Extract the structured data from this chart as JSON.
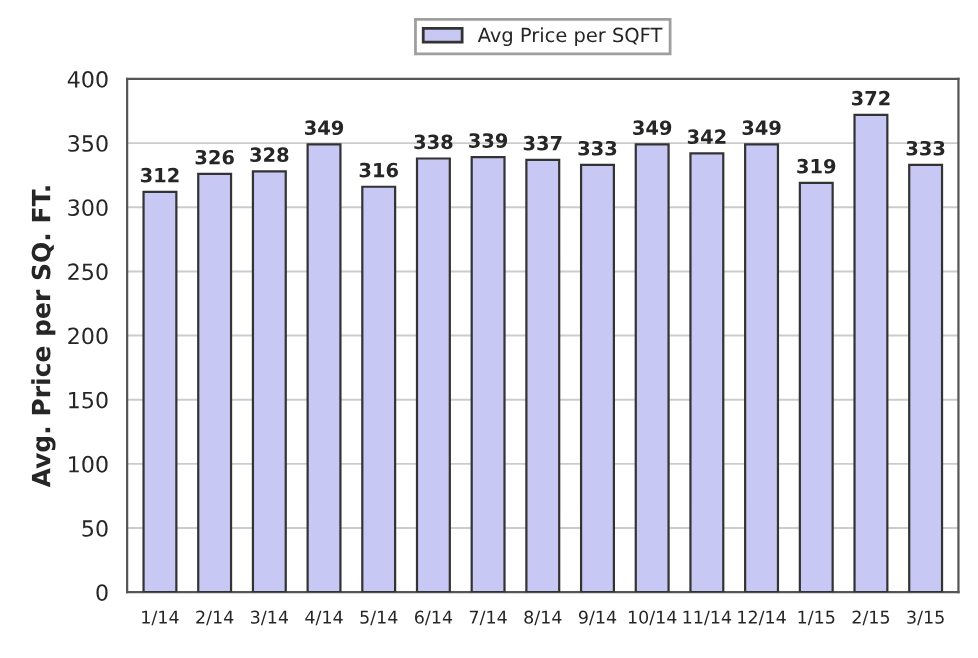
{
  "chart_data": {
    "type": "bar",
    "ylabel": "Avg. Price per SQ. FT.",
    "categories": [
      "1/14",
      "2/14",
      "3/14",
      "4/14",
      "5/14",
      "6/14",
      "7/14",
      "8/14",
      "9/14",
      "10/14",
      "11/14",
      "12/14",
      "1/15",
      "2/15",
      "3/15"
    ],
    "series": [
      {
        "name": "Avg Price per SQFT",
        "color": "#c8c8f5",
        "values": [
          312,
          326,
          328,
          349,
          316,
          338,
          339,
          337,
          333,
          349,
          342,
          349,
          319,
          372,
          333
        ]
      }
    ],
    "ylim": [
      0,
      400
    ],
    "yticks": [
      0,
      50,
      100,
      150,
      200,
      250,
      300,
      350,
      400
    ],
    "grid": "y",
    "legend": "top",
    "data_labels": true
  }
}
